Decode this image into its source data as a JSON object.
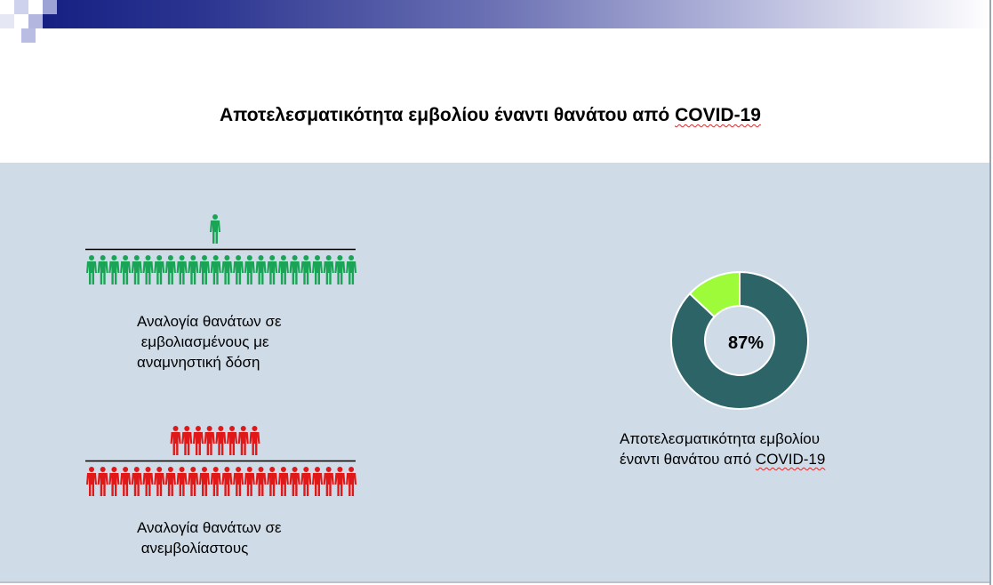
{
  "slide": {
    "title_main": "Αποτελεσματικότητα εμβολίου έναντι θανάτου από ",
    "title_squiggle": "COVID-19"
  },
  "colors": {
    "vaccinated": "#1aa556",
    "unvaccinated": "#e01818",
    "donut_main": "#2d6468",
    "donut_accent": "#9dfb3a"
  },
  "chart_data": [
    {
      "type": "pictogram",
      "icon": "person-icon",
      "numerator": 1,
      "denominator": 24,
      "caption": "Αναλογία θανάτων σε\n εμβολιασμένους με\nαναμνηστική δόση"
    },
    {
      "type": "pictogram",
      "icon": "person-icon",
      "numerator": 8,
      "denominator": 24,
      "caption": "Αναλογία θανάτων σε\n ανεμβολίαστους"
    },
    {
      "type": "pie",
      "donut": true,
      "slices": [
        {
          "value": 87
        },
        {
          "value": 13
        }
      ],
      "center_label": "87%",
      "caption_main": "Αποτελεσματικότητα εμβολίου\nέναντι θανάτου από ",
      "caption_squiggle": "COVID-19"
    }
  ]
}
